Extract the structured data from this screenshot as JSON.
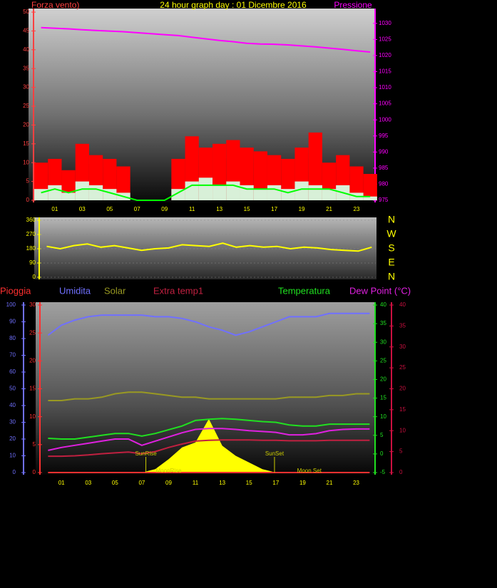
{
  "chart_data": [
    {
      "type": "combo",
      "title": "24 hour graph day : 01 Dicembre 2016",
      "y_label": "Forza vento)",
      "y2_label": "Pressione",
      "y_color": "#ff4040",
      "y2_color": "#ff00ff",
      "x": [
        0,
        1,
        2,
        3,
        4,
        5,
        6,
        7,
        8,
        9,
        10,
        11,
        12,
        13,
        14,
        15,
        16,
        17,
        18,
        19,
        20,
        21,
        22,
        23,
        24
      ],
      "xlim": [
        -0.5,
        24.3
      ],
      "xticks": [
        {
          "value": 1,
          "label": "01"
        },
        {
          "value": 3,
          "label": "03"
        },
        {
          "value": 5,
          "label": "05"
        },
        {
          "value": 7,
          "label": "07"
        },
        {
          "value": 9,
          "label": "09"
        },
        {
          "value": 11,
          "label": "11"
        },
        {
          "value": 13,
          "label": "13"
        },
        {
          "value": 15,
          "label": "15"
        },
        {
          "value": 17,
          "label": "17"
        },
        {
          "value": 19,
          "label": "19"
        },
        {
          "value": 21,
          "label": "21"
        },
        {
          "value": 23,
          "label": "23"
        }
      ],
      "ylim": [
        0,
        50
      ],
      "yticks": [
        0,
        5,
        10,
        15,
        20,
        25,
        30,
        35,
        40,
        45,
        50
      ],
      "y2lim": [
        975,
        1033.5
      ],
      "y2ticks": [
        975,
        980,
        985,
        990,
        995,
        1000,
        1005,
        1010,
        1015,
        1020,
        1025,
        1030
      ],
      "series": [
        {
          "type": "bar",
          "color": "#ff0000",
          "values": [
            10,
            11,
            8,
            15,
            12,
            11,
            9,
            0,
            0,
            0,
            11,
            17,
            14,
            15,
            16,
            14,
            13,
            12,
            11,
            14,
            18,
            10,
            12,
            9,
            7
          ]
        },
        {
          "type": "bar",
          "color": "#d8f0d8",
          "values": [
            3,
            4,
            2,
            5,
            4,
            3,
            2,
            0,
            0,
            0,
            3,
            5,
            6,
            4,
            5,
            4,
            3,
            4,
            3,
            5,
            4,
            3,
            4,
            2,
            1
          ]
        },
        {
          "type": "line",
          "color": "#00ff00",
          "values": [
            2,
            3,
            2,
            3,
            3,
            2,
            1,
            0,
            0,
            0,
            2,
            4,
            4,
            4,
            4,
            3,
            3,
            3,
            2,
            3,
            3,
            3,
            2,
            1,
            1
          ]
        },
        {
          "type": "line",
          "color": "#ff00ff",
          "axis": "y2",
          "values": [
            1028.7,
            1028.5,
            1028.3,
            1028.0,
            1027.8,
            1027.6,
            1027.4,
            1027.1,
            1026.8,
            1026.5,
            1026.2,
            1025.7,
            1025.2,
            1024.7,
            1024.3,
            1023.8,
            1023.6,
            1023.5,
            1023.3,
            1023.0,
            1022.7,
            1022.3,
            1021.9,
            1021.5,
            1021.1
          ]
        }
      ]
    },
    {
      "type": "line",
      "y_color": "#ffff00",
      "y2_color": "#ffff00",
      "grid": true,
      "x": [
        0,
        1,
        2,
        3,
        4,
        5,
        6,
        7,
        8,
        9,
        10,
        11,
        12,
        13,
        14,
        15,
        16,
        17,
        18,
        19,
        20,
        21,
        22,
        23,
        24
      ],
      "xlim": [
        -0.5,
        24.3
      ],
      "ylim": [
        0,
        360
      ],
      "yticks": [
        0,
        90,
        180,
        270,
        360
      ],
      "y2lim": [
        0,
        360
      ],
      "y2ticks": [
        {
          "value": 360,
          "label": "N"
        },
        {
          "value": 270,
          "label": "W"
        },
        {
          "value": 180,
          "label": "S"
        },
        {
          "value": 90,
          "label": "E"
        },
        {
          "value": 0,
          "label": "N"
        }
      ],
      "series": [
        {
          "type": "line",
          "color": "#ffff00",
          "values": [
            195,
            180,
            200,
            210,
            190,
            200,
            185,
            170,
            180,
            185,
            205,
            200,
            195,
            215,
            190,
            200,
            190,
            195,
            180,
            190,
            185,
            175,
            170,
            165,
            190
          ]
        }
      ]
    },
    {
      "type": "combo",
      "x": [
        0,
        1,
        2,
        3,
        4,
        5,
        6,
        7,
        8,
        9,
        10,
        11,
        12,
        13,
        14,
        15,
        16,
        17,
        18,
        19,
        20,
        21,
        22,
        23,
        24
      ],
      "xlim": [
        -0.5,
        24.3
      ],
      "xticks": [
        {
          "value": 1,
          "label": "01"
        },
        {
          "value": 3,
          "label": "03"
        },
        {
          "value": 5,
          "label": "05"
        },
        {
          "value": 7,
          "label": "07"
        },
        {
          "value": 9,
          "label": "09"
        },
        {
          "value": 11,
          "label": "11"
        },
        {
          "value": 13,
          "label": "13"
        },
        {
          "value": 15,
          "label": "15"
        },
        {
          "value": 17,
          "label": "17"
        },
        {
          "value": 19,
          "label": "19"
        },
        {
          "value": 21,
          "label": "21"
        },
        {
          "value": 23,
          "label": "23"
        }
      ],
      "axes": [
        {
          "color": "#7070ff",
          "lim": [
            0,
            100
          ],
          "ticks": [
            0,
            10,
            20,
            30,
            40,
            50,
            60,
            70,
            80,
            90,
            100
          ]
        },
        {
          "color": "#ff3030",
          "lim": [
            0,
            30
          ],
          "ticks": [
            0,
            5,
            10,
            15,
            20,
            25,
            30
          ]
        },
        {
          "color": "#20e020",
          "lim": [
            -5,
            40
          ],
          "ticks": [
            -5,
            0,
            5,
            10,
            15,
            20,
            25,
            30,
            35,
            40
          ]
        },
        {
          "color": "#cc1040",
          "lim": [
            0,
            40
          ],
          "ticks": [
            0,
            5,
            10,
            15,
            20,
            25,
            30,
            35,
            40
          ]
        }
      ],
      "series": [
        {
          "name": "Pioggia",
          "type": "line",
          "axis": 1,
          "color": "#ff3030",
          "values": [
            0,
            0,
            0,
            0,
            0,
            0,
            0,
            0,
            0,
            0,
            0,
            0,
            0,
            0,
            0,
            0,
            0,
            0,
            0,
            0,
            0,
            0,
            0,
            0,
            0
          ]
        },
        {
          "name": "Umidita",
          "type": "line",
          "axis": 0,
          "color": "#7070ff",
          "values": [
            82,
            88,
            91,
            93,
            94,
            94,
            94,
            94,
            93,
            93,
            92,
            90,
            87,
            85,
            82,
            84,
            87,
            90,
            93,
            93,
            93,
            95,
            95,
            95,
            95
          ]
        },
        {
          "name": "Solar",
          "type": "line",
          "axis": 0,
          "color": "#999922",
          "values": [
            43,
            43,
            44,
            44,
            45,
            47,
            48,
            48,
            47,
            46,
            45,
            45,
            44,
            44,
            44,
            44,
            44,
            44,
            45,
            45,
            45,
            46,
            46,
            47,
            47
          ]
        },
        {
          "name": "Extra temp1",
          "type": "line",
          "axis": 3,
          "color": "#c02040",
          "values": [
            3.9,
            3.9,
            4,
            4.2,
            4.5,
            4.7,
            4.9,
            4.5,
            5,
            6,
            6.8,
            7.5,
            7.7,
            7.8,
            7.8,
            7.8,
            7.7,
            7.7,
            7.6,
            7.6,
            7.6,
            7.7,
            7.7,
            7.7,
            7.7
          ]
        },
        {
          "name": "Temperatura",
          "type": "line",
          "axis": 2,
          "color": "#20e020",
          "values": [
            4.2,
            4,
            4,
            4.5,
            5,
            5.5,
            5.5,
            4.8,
            5.5,
            6.5,
            7.5,
            9,
            9.3,
            9.5,
            9.3,
            9,
            8.7,
            8.5,
            7.8,
            7.5,
            7.5,
            8,
            8,
            8,
            8
          ]
        },
        {
          "name": "Dew Point (°C)",
          "type": "line",
          "axis": 3,
          "color": "#e020e0",
          "values": [
            5.3,
            6,
            6.5,
            7,
            7.5,
            8,
            8,
            6.5,
            7.5,
            8.5,
            9.5,
            10.3,
            10.5,
            10.5,
            10.3,
            10,
            9.8,
            9.6,
            9,
            9,
            9.3,
            10,
            10.3,
            10.4,
            10.4
          ]
        },
        {
          "type": "area",
          "axis": 0,
          "color": "#ffff00",
          "values": [
            0,
            0,
            0,
            0,
            0,
            0,
            0,
            0,
            2,
            8,
            15,
            18,
            32,
            16,
            10,
            6,
            2,
            0,
            0,
            0,
            0,
            0,
            0,
            0,
            0
          ]
        }
      ],
      "annotations": [
        {
          "text": "SunRise",
          "x": 7.3
        },
        {
          "text": "SunSet",
          "x": 16.9
        },
        {
          "text": "MoonRise",
          "x": 9.0
        },
        {
          "text": "Moon Set",
          "x": 19.5
        }
      ]
    }
  ]
}
